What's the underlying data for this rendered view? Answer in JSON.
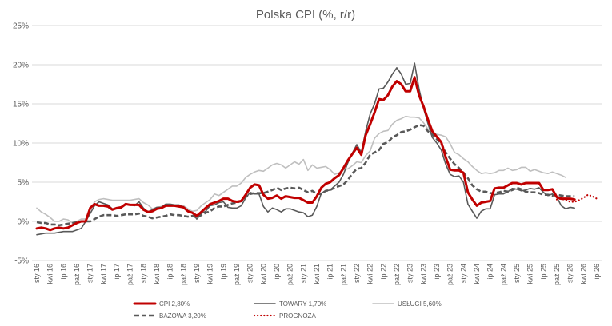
{
  "chart_data": {
    "type": "line",
    "title": "Polska CPI (%, r/r)",
    "xlabel": "",
    "ylabel": "",
    "ylim": [
      -5,
      25
    ],
    "y_ticks": [
      "-5%",
      "0%",
      "5%",
      "10%",
      "15%",
      "20%",
      "25%"
    ],
    "x_tick_labels": [
      "sty 16",
      "kwi 16",
      "lip 16",
      "paź 16",
      "sty 17",
      "kwi 17",
      "lip 17",
      "paź 17",
      "sty 18",
      "kwi 18",
      "lip 18",
      "paź 18",
      "sty 19",
      "kwi 19",
      "lip 19",
      "paź 19",
      "sty 20",
      "kwi 20",
      "lip 20",
      "paź 20",
      "sty 21",
      "kwi 21",
      "lip 21",
      "paź 21",
      "sty 22",
      "kwi 22",
      "lip 22",
      "paź 22",
      "sty 23",
      "kwi 23",
      "lip 23",
      "paź 23",
      "sty 24",
      "kwi 24",
      "lip 24",
      "paź 24",
      "sty 25",
      "kwi 25",
      "lip 25",
      "paź 25",
      "sty 26",
      "kwi 26",
      "lip 26"
    ],
    "grid": "horizontal",
    "legend_position": "bottom",
    "series": [
      {
        "name": "CPI 2,80%",
        "color": "#c00000",
        "style": "solid-thick",
        "values": [
          -0.9,
          -0.8,
          -0.9,
          -1.1,
          -0.9,
          -0.8,
          -0.9,
          -0.8,
          -0.5,
          -0.2,
          0.0,
          0.0,
          1.7,
          2.2,
          2.0,
          2.0,
          1.9,
          1.5,
          1.7,
          1.8,
          2.2,
          2.1,
          2.1,
          2.1,
          1.5,
          1.2,
          1.3,
          1.6,
          1.7,
          2.0,
          2.0,
          2.0,
          1.9,
          1.8,
          1.3,
          1.1,
          0.7,
          1.2,
          1.7,
          2.2,
          2.4,
          2.6,
          2.9,
          2.9,
          2.6,
          2.5,
          2.6,
          3.4,
          4.3,
          4.7,
          4.6,
          3.4,
          2.9,
          3.0,
          3.3,
          2.9,
          3.2,
          3.1,
          3.0,
          3.0,
          2.7,
          2.4,
          2.4,
          3.2,
          4.3,
          4.8,
          5.0,
          5.5,
          5.9,
          6.8,
          7.8,
          8.6,
          9.4,
          8.5,
          11.0,
          12.4,
          13.9,
          15.6,
          15.5,
          16.1,
          17.2,
          17.9,
          17.5,
          16.6,
          16.6,
          18.4,
          16.1,
          14.7,
          13.0,
          11.5,
          10.8,
          10.1,
          8.2,
          6.6,
          6.5,
          6.5,
          6.2,
          3.7,
          2.8,
          2.0,
          2.4,
          2.5,
          2.6,
          4.2,
          4.3,
          4.3,
          4.6,
          4.9,
          4.9,
          4.7,
          4.9,
          4.9,
          4.9,
          4.9,
          4.0,
          4.0,
          4.1,
          3.1,
          2.9,
          2.9,
          2.9,
          2.8
        ]
      },
      {
        "name": "TOWARY 1,70%",
        "color": "#595959",
        "style": "solid",
        "values": [
          -1.7,
          -1.6,
          -1.5,
          -1.5,
          -1.5,
          -1.4,
          -1.3,
          -1.3,
          -1.3,
          -1.1,
          -0.9,
          0.0,
          1.0,
          2.0,
          2.5,
          2.3,
          2.1,
          1.6,
          1.6,
          1.7,
          2.3,
          2.1,
          2.0,
          2.5,
          1.7,
          1.2,
          1.5,
          1.8,
          1.8,
          2.2,
          2.2,
          2.1,
          2.1,
          1.8,
          1.3,
          1.1,
          0.3,
          1.0,
          1.3,
          2.0,
          2.1,
          2.4,
          2.5,
          1.8,
          1.7,
          1.7,
          2.0,
          3.0,
          3.7,
          3.5,
          3.5,
          1.9,
          1.2,
          1.7,
          1.5,
          1.2,
          1.6,
          1.6,
          1.4,
          1.2,
          1.1,
          0.6,
          0.8,
          1.9,
          3.6,
          3.9,
          4.0,
          4.5,
          5.0,
          6.0,
          7.5,
          8.7,
          9.8,
          8.8,
          11.5,
          13.7,
          15.0,
          16.9,
          17.0,
          17.8,
          18.8,
          19.6,
          18.8,
          17.5,
          17.6,
          20.2,
          16.9,
          14.5,
          12.5,
          10.7,
          10.0,
          9.1,
          7.3,
          6.0,
          5.7,
          5.8,
          5.0,
          2.2,
          1.3,
          0.4,
          1.3,
          1.6,
          1.6,
          3.4,
          3.5,
          3.5,
          3.8,
          4.2,
          4.1,
          3.9,
          4.0,
          4.2,
          4.1,
          4.3,
          3.7,
          3.3,
          3.5,
          3.1,
          2.0,
          1.6,
          1.8,
          1.7
        ]
      },
      {
        "name": "USŁUGI 5,60%",
        "color": "#bfbfbf",
        "style": "solid",
        "values": [
          1.7,
          1.2,
          0.9,
          0.5,
          0.0,
          0.0,
          0.3,
          0.2,
          -0.2,
          0.0,
          0.3,
          0.3,
          1.5,
          2.5,
          2.8,
          2.9,
          2.8,
          2.7,
          2.7,
          2.7,
          2.7,
          2.7,
          2.8,
          2.9,
          2.4,
          2.1,
          1.6,
          1.8,
          1.9,
          2.0,
          2.0,
          2.0,
          1.9,
          2.0,
          1.6,
          1.3,
          1.4,
          2.0,
          2.4,
          2.8,
          3.5,
          3.3,
          3.7,
          4.1,
          4.5,
          4.5,
          4.9,
          5.6,
          6.0,
          6.3,
          6.5,
          6.4,
          6.8,
          7.2,
          7.4,
          7.2,
          6.8,
          7.2,
          7.6,
          7.3,
          7.9,
          6.5,
          7.2,
          6.8,
          6.9,
          7.0,
          6.6,
          6.0,
          6.2,
          6.6,
          6.7,
          7.1,
          7.6,
          7.5,
          8.4,
          9.0,
          10.6,
          11.2,
          11.5,
          11.6,
          12.4,
          12.9,
          13.1,
          13.4,
          13.3,
          13.3,
          13.2,
          12.6,
          11.8,
          11.4,
          11.1,
          11.0,
          10.8,
          9.9,
          8.8,
          8.5,
          8.0,
          7.6,
          7.0,
          6.5,
          6.1,
          6.2,
          6.1,
          6.2,
          6.5,
          6.5,
          6.8,
          6.5,
          6.6,
          6.9,
          6.9,
          6.4,
          6.6,
          6.4,
          6.2,
          6.1,
          6.3,
          6.1,
          5.9,
          5.6
        ]
      },
      {
        "name": "BAZOWA 3,20%",
        "color": "#595959",
        "style": "dashed",
        "values": [
          -0.1,
          -0.2,
          -0.2,
          -0.4,
          -0.4,
          -0.5,
          -0.4,
          -0.3,
          -0.2,
          -0.1,
          0.0,
          0.0,
          0.0,
          0.3,
          0.6,
          0.8,
          0.8,
          0.8,
          0.7,
          0.8,
          0.9,
          0.9,
          0.9,
          1.0,
          0.7,
          0.6,
          0.4,
          0.5,
          0.6,
          0.7,
          0.9,
          0.8,
          0.8,
          0.7,
          0.6,
          0.7,
          0.5,
          0.8,
          1.1,
          1.3,
          1.7,
          1.9,
          1.9,
          2.1,
          2.3,
          2.4,
          2.6,
          3.1,
          3.5,
          3.6,
          3.6,
          3.6,
          3.8,
          4.0,
          4.3,
          4.0,
          4.2,
          4.3,
          4.2,
          4.3,
          4.0,
          3.7,
          3.9,
          3.5,
          3.5,
          3.9,
          4.0,
          4.3,
          4.5,
          4.7,
          5.3,
          6.1,
          6.7,
          6.8,
          7.5,
          8.5,
          8.8,
          9.1,
          9.9,
          10.1,
          10.7,
          11.0,
          11.4,
          11.5,
          11.7,
          12.0,
          12.3,
          12.2,
          11.5,
          11.1,
          10.5,
          9.9,
          8.8,
          8.0,
          7.3,
          6.8,
          6.2,
          5.5,
          4.6,
          4.1,
          3.8,
          3.8,
          3.6,
          3.6,
          3.7,
          3.9,
          3.8,
          4.0,
          4.3,
          4.1,
          3.8,
          3.7,
          3.7,
          3.6,
          3.4,
          3.4,
          3.3,
          3.4,
          3.3,
          3.2,
          3.2,
          3.2
        ]
      },
      {
        "name": "PROGNOZA",
        "color": "#c00000",
        "style": "dotted",
        "start_index": 117,
        "values": [
          2.8,
          2.9,
          2.7,
          2.5,
          2.5,
          2.7,
          3.0,
          3.4,
          3.2,
          2.9
        ]
      }
    ]
  }
}
